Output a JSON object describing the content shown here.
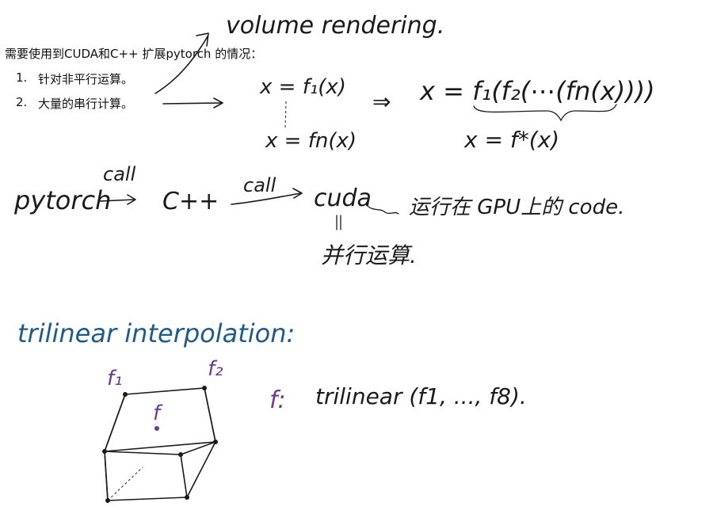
{
  "typed": {
    "heading": "需要使用到CUDA和C++ 扩展pytorch 的情况：",
    "items": [
      {
        "num": "1.",
        "text": "针对非平行运算。"
      },
      {
        "num": "2.",
        "text": "大量的串行计算。"
      }
    ]
  },
  "handwritten": {
    "volume_rendering": "volume rendering.",
    "eq_x_f1": "x = f₁(x)",
    "eq_x_fn": "x = fn(x)",
    "implies": "⇒",
    "eq_composition": "x = f₁(f₂(⋯(fn(x))))",
    "eq_fstar": "x = f*(x)",
    "pipeline": {
      "pytorch": "pytorch",
      "call1": "call",
      "cpp": "C++",
      "call2": "call",
      "cuda": "cuda",
      "runs_on_gpu": "运行在 GPU上的 code.",
      "parallel": "并行运算."
    },
    "trilinear_title": "trilinear interpolation:",
    "labels": {
      "f1": "f₁",
      "f2": "f₂",
      "f": "f"
    },
    "trilinear_formula_prefix": "f:",
    "trilinear_formula": "trilinear (f1, ..., f8)."
  }
}
